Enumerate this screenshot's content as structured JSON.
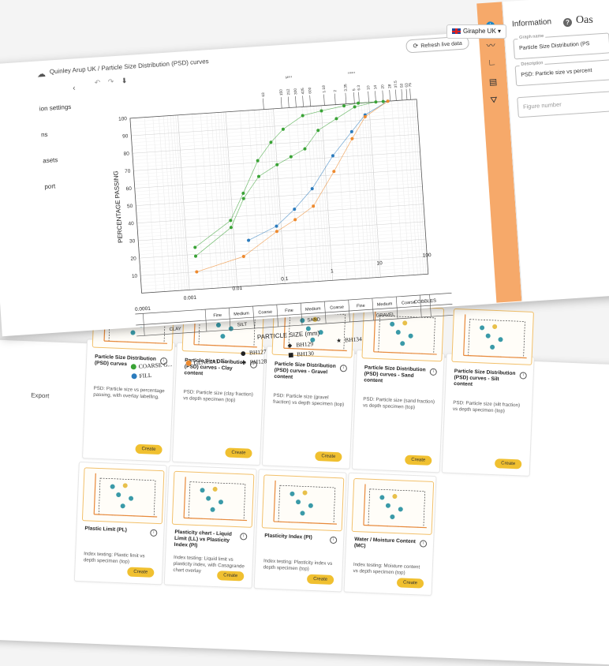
{
  "header": {
    "language": "Giraphe UK",
    "brand": "Oas"
  },
  "editor": {
    "breadcrumb": "Quinley Arup UK / Particle Size Distribution (PSD) curves",
    "refresh_label": "Refresh live data",
    "sidebar": [
      "ion settings",
      "ns",
      "asets",
      "port"
    ]
  },
  "info_panel": {
    "title": "Information",
    "graph_name_label": "Graph name",
    "graph_name_value": "Particle Size Distribution (PS",
    "description_label": "Description",
    "description_value": "PSD: Particle size vs percent",
    "figure_number_placeholder": "Figure number"
  },
  "rail_icons": [
    "info-icon",
    "line-chart-icon",
    "axes-icon",
    "comment-icon",
    "filter-icon"
  ],
  "chart_data": {
    "type": "scatter",
    "x_scale": "log",
    "xlim": [
      0.0001,
      100
    ],
    "ylim": [
      0,
      100
    ],
    "xlabel": "PARTICLE SIZE (mm)",
    "ylabel": "PERCENTAGE PASSING",
    "x_ticks": [
      "0.0001",
      "0.001",
      "0.01",
      "0.1",
      "1",
      "10",
      "100"
    ],
    "y_ticks": [
      "10",
      "20",
      "30",
      "40",
      "50",
      "60",
      "70",
      "80",
      "90",
      "100"
    ],
    "grid": true,
    "top_labels": [
      "µm",
      "mm"
    ],
    "sieve_labels": [
      "63",
      "150",
      "212",
      "300",
      "425",
      "600",
      "1.18",
      "2",
      "3.35",
      "5",
      "6.3",
      "10",
      "14",
      "20",
      "28",
      "37.5",
      "50",
      "63",
      "75"
    ],
    "classification": {
      "bands": [
        "CLAY",
        "SILT",
        "SAND",
        "GRAVEL",
        "COBBLES"
      ],
      "sub_bands": [
        "Fine",
        "Medium",
        "Coarse",
        "Fine",
        "Medium",
        "Coarse",
        "Fine",
        "Medium",
        "Coarse"
      ]
    },
    "series": [
      {
        "name": "COARSE G...",
        "color": "#3aa336",
        "x": [
          0.0015,
          0.009,
          0.018,
          0.04,
          0.1,
          0.2,
          0.4,
          0.8,
          2,
          5,
          14
        ],
        "y": [
          19,
          34,
          50,
          62,
          68,
          72,
          76,
          86,
          92,
          98,
          100
        ]
      },
      {
        "name": "COARSE G...",
        "color": "#3aa336",
        "x": [
          0.0015,
          0.009,
          0.018,
          0.04,
          0.08,
          0.15,
          0.4,
          1,
          3,
          6,
          20
        ],
        "y": [
          24,
          38,
          53,
          71,
          81,
          88,
          95,
          97,
          99,
          100,
          100
        ]
      },
      {
        "name": "FILL",
        "color": "#2b7bbd",
        "x": [
          0.02,
          0.08,
          0.2,
          0.5,
          1.5,
          4,
          8,
          25
        ],
        "y": [
          26,
          33,
          42,
          53,
          71,
          84,
          93,
          100
        ]
      },
      {
        "name": "GLACIAL T...",
        "color": "#ee8a2e",
        "x": [
          0.0015,
          0.015,
          0.08,
          0.2,
          0.5,
          1.5,
          4,
          8,
          25
        ],
        "y": [
          10,
          17,
          30,
          36,
          43,
          62,
          80,
          92,
          100
        ]
      }
    ],
    "legend": [
      {
        "label": "COARSE G...",
        "color": "#3aa336"
      },
      {
        "label": "FILL",
        "color": "#2b7bbd"
      },
      {
        "label": "GLACIAL T...",
        "color": "#ee8a2e"
      },
      {
        "label": "BH127",
        "symbol": "●"
      },
      {
        "label": "BH128",
        "symbol": "✚"
      },
      {
        "label": "BH129",
        "symbol": "◆"
      },
      {
        "label": "BH130",
        "symbol": "■"
      },
      {
        "label": "BH134",
        "symbol": "★"
      }
    ]
  },
  "gallery": {
    "export": "Export",
    "create_label": "Create",
    "cards": [
      {
        "title": "Particle Size Distribution (PSD) curves",
        "desc": "PSD: Particle size vs percentage passing, with overlay labelling."
      },
      {
        "title": "Particle Size Distribution (PSD) curves - Clay content",
        "desc": "PSD: Particle size (clay fraction) vs depth specimen (top)"
      },
      {
        "title": "Particle Size Distribution (PSD) curves - Gravel content",
        "desc": "PSD: Particle size (gravel fraction) vs depth specimen (top)"
      },
      {
        "title": "Particle Size Distribution (PSD) curves - Sand content",
        "desc": "PSD: Particle size (sand fraction) vs depth specimen (top)"
      },
      {
        "title": "Particle Size Distribution (PSD) curves - Silt content",
        "desc": "PSD: Particle size (silt fraction) vs depth specimen (top)"
      },
      {
        "title": "Plastic Limit (PL)",
        "desc": "Index testing: Plastic limit vs depth specimen (top)"
      },
      {
        "title": "Plasticity chart - Liquid Limit (LL) vs Plasticity Index (PI)",
        "desc": "Index testing: Liquid limit vs plasticity index, with Casagrande chart overlay"
      },
      {
        "title": "Plasticity Index (PI)",
        "desc": "Index testing: Plasticity index vs depth specimen (top)"
      },
      {
        "title": "Water / Moisture Content (MC)",
        "desc": "Index testing: Moisture content vs depth specimen (top)"
      }
    ]
  }
}
